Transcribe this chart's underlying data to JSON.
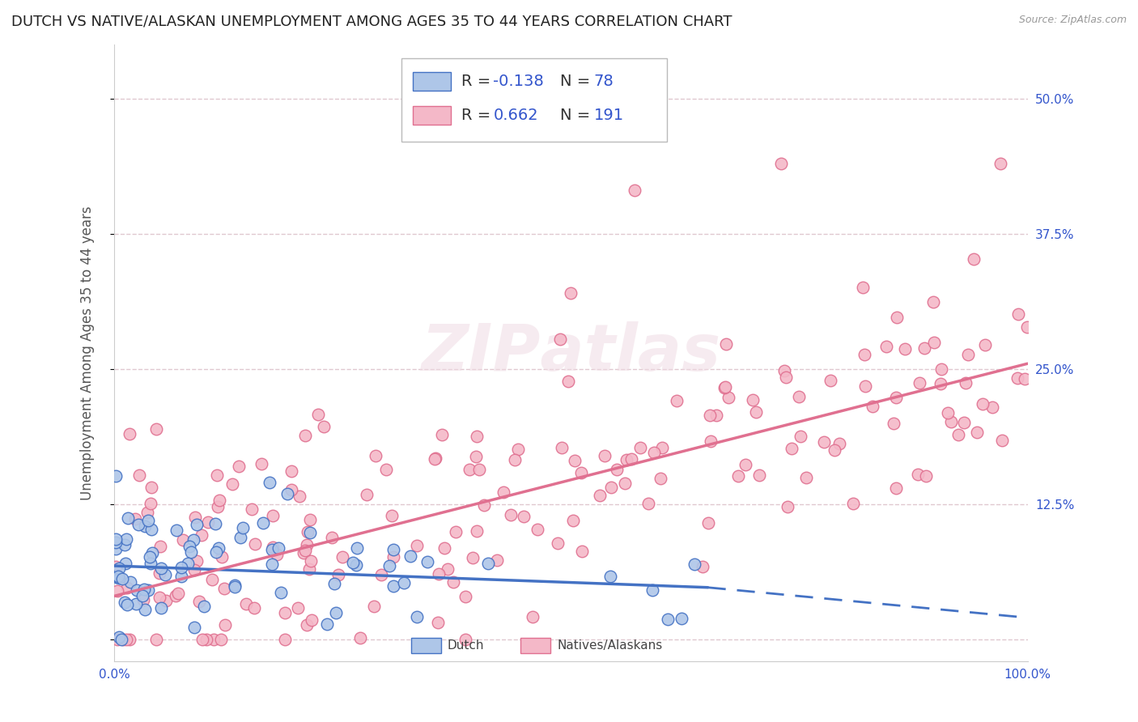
{
  "title": "DUTCH VS NATIVE/ALASKAN UNEMPLOYMENT AMONG AGES 35 TO 44 YEARS CORRELATION CHART",
  "source": "Source: ZipAtlas.com",
  "ylabel": "Unemployment Among Ages 35 to 44 years",
  "xlim": [
    0.0,
    1.0
  ],
  "ylim": [
    -0.02,
    0.55
  ],
  "yticks": [
    0.0,
    0.125,
    0.25,
    0.375,
    0.5
  ],
  "yticklabels": [
    "",
    "12.5%",
    "25.0%",
    "37.5%",
    "50.0%"
  ],
  "xtick_vals": [
    0.0,
    0.25,
    0.5,
    0.75,
    1.0
  ],
  "xticklabels": [
    "0.0%",
    "",
    "",
    "",
    "100.0%"
  ],
  "dutch_R": -0.138,
  "dutch_N": 78,
  "native_R": 0.662,
  "native_N": 191,
  "dutch_face_color": "#aec6e8",
  "dutch_edge_color": "#4472c4",
  "native_face_color": "#f4b8c8",
  "native_edge_color": "#e07090",
  "dutch_line_color": "#4472c4",
  "native_line_color": "#e07090",
  "legend_label_dutch": "Dutch",
  "legend_label_native": "Natives/Alaskans",
  "watermark": "ZIPAtlas",
  "background_color": "#ffffff",
  "grid_color": "#e0c8d0",
  "title_fontsize": 13,
  "axis_label_fontsize": 12,
  "tick_fontsize": 11,
  "legend_fontsize": 14
}
